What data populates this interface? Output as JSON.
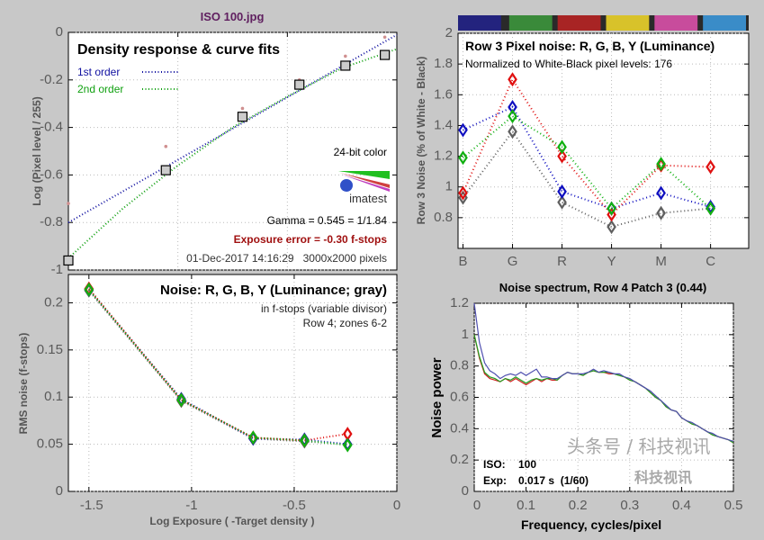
{
  "file_title": "ISO 100.jpg",
  "colors": {
    "title": "#602060",
    "background": "#c8c8c8",
    "red": "#e01010",
    "green": "#10b010",
    "blue": "#1010b0",
    "gray": "#606060",
    "exposure_error": "#a01010"
  },
  "watermark": {
    "line1": "科技视讯",
    "line2": "头条号 / 科技视讯"
  },
  "chart_data": [
    {
      "type": "line",
      "title": "Density response & curve fits",
      "ylabel": "Log (Pixel level / 255)",
      "xlim": [
        0,
        3
      ],
      "ylim": [
        -1,
        0
      ],
      "yticks": [
        0,
        -0.2,
        -0.4,
        -0.6,
        -0.8,
        -1
      ],
      "ytick_labels": [
        "0",
        "-0.2",
        "-0.4",
        "-0.6",
        "-0.8",
        "-1"
      ],
      "grid": true,
      "legend": [
        {
          "name": "1st order",
          "color": "#1010a0"
        },
        {
          "name": "2nd order",
          "color": "#10a010"
        }
      ],
      "measured": {
        "x": [
          0.0,
          0.89,
          1.59,
          2.11,
          2.53,
          2.89
        ],
        "y": [
          -0.96,
          -0.58,
          -0.355,
          -0.22,
          -0.14,
          -0.095
        ]
      },
      "reference": {
        "x": [
          0.0,
          0.89,
          1.59,
          2.11,
          2.53,
          2.89
        ],
        "y": [
          -0.72,
          -0.48,
          -0.32,
          -0.2,
          -0.1,
          -0.02
        ]
      },
      "fit_1st": {
        "x": [
          0,
          3
        ],
        "y": [
          -0.8,
          -0.01
        ]
      },
      "fit_2nd": {
        "x": [
          0,
          0.5,
          1,
          1.5,
          2,
          2.5,
          3
        ],
        "y": [
          -0.95,
          -0.74,
          -0.56,
          -0.4,
          -0.27,
          -0.15,
          -0.07
        ]
      },
      "annotations": {
        "bit_depth": "24-bit color",
        "logo": "imatest",
        "gamma": "Gamma = 0.545 = 1/1.84",
        "exposure_error": "Exposure error = -0.30 f-stops",
        "datetime_size": "01-Dec-2017 14:16:29   3000x2000 pixels"
      }
    },
    {
      "type": "line",
      "title": "Row 3 Pixel noise: R, G, B, Y (Luminance)",
      "subtitle": "Normalized to White-Black pixel levels: 176",
      "ylabel": "Row 3 Noise (% of White - Black)",
      "categories": [
        "B",
        "G",
        "R",
        "Y",
        "M",
        "C"
      ],
      "patch_colors": [
        "#23237e",
        "#3a8a3a",
        "#a82424",
        "#d8c22a",
        "#c84c9c",
        "#3a8cc8"
      ],
      "ylim": [
        0.6,
        2
      ],
      "yticks": [
        0.8,
        1,
        1.2,
        1.4,
        1.6,
        1.8,
        2
      ],
      "ytick_labels": [
        "0.8",
        "1",
        "1.2",
        "1.4",
        "1.6",
        "1.8",
        "2"
      ],
      "grid": true,
      "series": [
        {
          "color": "#606060",
          "values": [
            0.93,
            1.36,
            0.9,
            0.74,
            0.83,
            0.86
          ]
        },
        {
          "color": "#1010c0",
          "values": [
            1.37,
            1.52,
            0.97,
            0.86,
            0.96,
            0.87
          ]
        },
        {
          "color": "#e01010",
          "values": [
            0.96,
            1.7,
            1.2,
            0.82,
            1.14,
            1.13
          ]
        },
        {
          "color": "#10b010",
          "values": [
            1.19,
            1.46,
            1.26,
            0.86,
            1.15,
            0.86
          ]
        }
      ]
    },
    {
      "type": "line",
      "title": "Noise: R, G, B, Y (Luminance; gray)",
      "subtitle": [
        "in f-stops (variable divisor)",
        "Row 4; zones 6-2"
      ],
      "xlabel": "Log Exposure ( -Target density )",
      "ylabel": "RMS noise (f-stops)",
      "xlim": [
        -1.6,
        0
      ],
      "ylim": [
        0,
        0.23
      ],
      "xticks": [
        -1.5,
        -1,
        -0.5,
        0
      ],
      "xtick_labels": [
        "-1.5",
        "-1",
        "-0.5",
        "0"
      ],
      "yticks": [
        0,
        0.05,
        0.1,
        0.15,
        0.2
      ],
      "ytick_labels": [
        "0",
        "0.05",
        "0.1",
        "0.15",
        "0.2"
      ],
      "grid": true,
      "x": [
        -1.5,
        -1.05,
        -0.7,
        -0.45,
        -0.24
      ],
      "series": [
        {
          "color": "#606060",
          "values": [
            0.213,
            0.096,
            0.056,
            0.053,
            0.05
          ]
        },
        {
          "color": "#1010c0",
          "values": [
            0.214,
            0.098,
            0.056,
            0.055,
            0.05
          ]
        },
        {
          "color": "#e01010",
          "values": [
            0.215,
            0.097,
            0.057,
            0.054,
            0.061
          ]
        },
        {
          "color": "#10b010",
          "values": [
            0.214,
            0.097,
            0.057,
            0.054,
            0.049
          ]
        }
      ]
    },
    {
      "type": "line",
      "title": "Noise spectrum, Row 4 Patch 3 (0.44)",
      "xlabel": "Frequency, cycles/pixel",
      "ylabel": "Noise power",
      "xlim": [
        0,
        0.5
      ],
      "ylim": [
        0,
        1.2
      ],
      "xticks": [
        0,
        0.1,
        0.2,
        0.3,
        0.4,
        0.5
      ],
      "xtick_labels": [
        "0",
        "0.1",
        "0.2",
        "0.3",
        "0.4",
        "0.5"
      ],
      "yticks": [
        0,
        0.2,
        0.4,
        0.6,
        0.8,
        1,
        1.2
      ],
      "ytick_labels": [
        "0",
        "0.2",
        "0.4",
        "0.6",
        "0.8",
        "1",
        "1.2"
      ],
      "grid": true,
      "x": [
        0,
        0.01,
        0.02,
        0.03,
        0.04,
        0.05,
        0.06,
        0.07,
        0.08,
        0.09,
        0.1,
        0.11,
        0.12,
        0.13,
        0.14,
        0.15,
        0.16,
        0.17,
        0.18,
        0.19,
        0.2,
        0.21,
        0.22,
        0.23,
        0.24,
        0.25,
        0.26,
        0.27,
        0.28,
        0.29,
        0.3,
        0.31,
        0.32,
        0.33,
        0.34,
        0.35,
        0.36,
        0.37,
        0.38,
        0.39,
        0.4,
        0.41,
        0.42,
        0.43,
        0.44,
        0.45,
        0.46,
        0.47,
        0.48,
        0.49,
        0.5
      ],
      "series": [
        {
          "color": "#d02020",
          "values": [
            1.0,
            0.85,
            0.75,
            0.72,
            0.71,
            0.7,
            0.72,
            0.7,
            0.72,
            0.7,
            0.68,
            0.7,
            0.72,
            0.7,
            0.72,
            0.71,
            0.71,
            0.74,
            0.76,
            0.75,
            0.75,
            0.74,
            0.76,
            0.77,
            0.76,
            0.76,
            0.75,
            0.75,
            0.74,
            0.73,
            0.71,
            0.7,
            0.68,
            0.66,
            0.63,
            0.6,
            0.58,
            0.54,
            0.52,
            0.51,
            0.47,
            0.45,
            0.43,
            0.42,
            0.4,
            0.38,
            0.36,
            0.35,
            0.34,
            0.33,
            0.31
          ]
        },
        {
          "color": "#20a020",
          "values": [
            1.0,
            0.86,
            0.76,
            0.73,
            0.72,
            0.7,
            0.72,
            0.71,
            0.73,
            0.71,
            0.69,
            0.71,
            0.72,
            0.71,
            0.72,
            0.72,
            0.71,
            0.74,
            0.76,
            0.75,
            0.75,
            0.74,
            0.76,
            0.77,
            0.76,
            0.76,
            0.76,
            0.75,
            0.74,
            0.73,
            0.71,
            0.7,
            0.68,
            0.66,
            0.63,
            0.6,
            0.58,
            0.54,
            0.52,
            0.51,
            0.47,
            0.45,
            0.43,
            0.42,
            0.4,
            0.38,
            0.36,
            0.35,
            0.34,
            0.33,
            0.31
          ]
        },
        {
          "color": "#5050b0",
          "values": [
            1.2,
            0.95,
            0.82,
            0.77,
            0.75,
            0.72,
            0.74,
            0.75,
            0.74,
            0.76,
            0.74,
            0.76,
            0.78,
            0.73,
            0.73,
            0.72,
            0.72,
            0.74,
            0.76,
            0.75,
            0.75,
            0.75,
            0.76,
            0.78,
            0.76,
            0.77,
            0.76,
            0.75,
            0.75,
            0.73,
            0.72,
            0.7,
            0.68,
            0.66,
            0.64,
            0.61,
            0.58,
            0.55,
            0.52,
            0.51,
            0.47,
            0.45,
            0.44,
            0.42,
            0.4,
            0.38,
            0.37,
            0.35,
            0.34,
            0.33,
            0.32
          ]
        }
      ],
      "annotations": {
        "iso_label": "ISO:",
        "iso_value": "100",
        "exp_label": "Exp:",
        "exp_value": "0.017 s  (1/60)"
      }
    }
  ]
}
